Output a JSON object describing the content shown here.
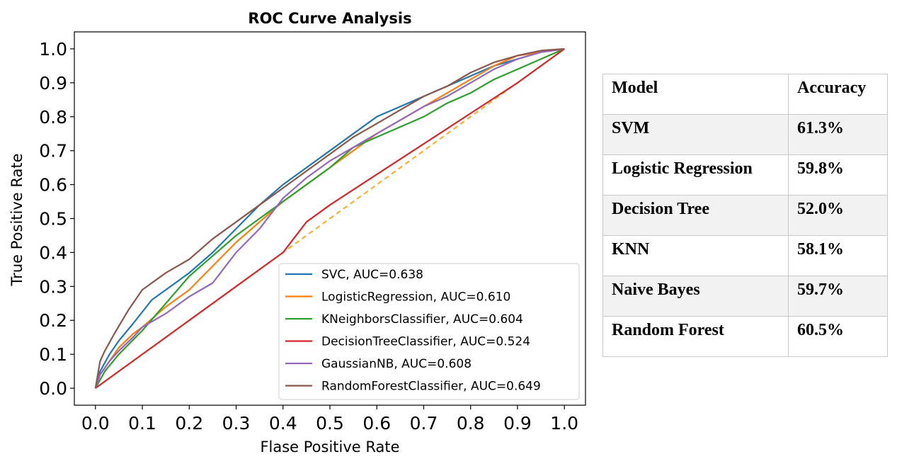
{
  "chart_data": {
    "type": "line",
    "title": "ROC Curve Analysis",
    "xlabel": "Flase Positive Rate",
    "ylabel": "True Positive Rate",
    "xlim": [
      -0.045,
      1.045
    ],
    "ylim": [
      -0.05,
      1.05
    ],
    "xticks": [
      "0.0",
      "0.1",
      "0.2",
      "0.3",
      "0.4",
      "0.5",
      "0.6",
      "0.7",
      "0.8",
      "0.9",
      "1.0"
    ],
    "yticks": [
      "0.0",
      "0.1",
      "0.2",
      "0.3",
      "0.4",
      "0.5",
      "0.6",
      "0.7",
      "0.8",
      "0.9",
      "1.0"
    ],
    "grid": false,
    "legend_position": "lower-right",
    "series": [
      {
        "name": "SVC, AUC=0.638",
        "color": "#1f77b4",
        "x": [
          0,
          0.01,
          0.03,
          0.05,
          0.08,
          0.12,
          0.15,
          0.2,
          0.25,
          0.3,
          0.35,
          0.4,
          0.45,
          0.5,
          0.55,
          0.6,
          0.65,
          0.7,
          0.75,
          0.8,
          0.85,
          0.9,
          0.95,
          1.0
        ],
        "y": [
          0,
          0.05,
          0.1,
          0.14,
          0.19,
          0.26,
          0.29,
          0.34,
          0.4,
          0.47,
          0.54,
          0.6,
          0.65,
          0.7,
          0.75,
          0.8,
          0.83,
          0.86,
          0.89,
          0.92,
          0.95,
          0.97,
          0.99,
          1.0
        ]
      },
      {
        "name": "LogisticRegression, AUC=0.610",
        "color": "#ff7f0e",
        "x": [
          0,
          0.01,
          0.03,
          0.05,
          0.08,
          0.1,
          0.15,
          0.2,
          0.25,
          0.3,
          0.35,
          0.4,
          0.45,
          0.5,
          0.55,
          0.6,
          0.65,
          0.7,
          0.75,
          0.8,
          0.85,
          0.9,
          0.95,
          1.0
        ],
        "y": [
          0,
          0.04,
          0.08,
          0.12,
          0.16,
          0.18,
          0.24,
          0.29,
          0.36,
          0.43,
          0.49,
          0.55,
          0.6,
          0.65,
          0.7,
          0.75,
          0.79,
          0.83,
          0.87,
          0.91,
          0.95,
          0.98,
          0.99,
          1.0
        ]
      },
      {
        "name": "KNeighborsClassifier, AUC=0.604",
        "color": "#2ca02c",
        "x": [
          0,
          0.02,
          0.05,
          0.1,
          0.15,
          0.2,
          0.25,
          0.3,
          0.35,
          0.4,
          0.45,
          0.5,
          0.55,
          0.6,
          0.65,
          0.7,
          0.75,
          0.8,
          0.85,
          0.9,
          0.95,
          1.0
        ],
        "y": [
          0,
          0.05,
          0.1,
          0.17,
          0.25,
          0.33,
          0.39,
          0.45,
          0.5,
          0.55,
          0.6,
          0.65,
          0.71,
          0.74,
          0.77,
          0.8,
          0.84,
          0.87,
          0.91,
          0.94,
          0.97,
          1.0
        ]
      },
      {
        "name": "DecisionTreeClassifier, AUC=0.524",
        "color": "#d62728",
        "x": [
          0,
          0.1,
          0.2,
          0.3,
          0.4,
          0.45,
          0.5,
          0.6,
          0.7,
          0.8,
          0.9,
          1.0
        ],
        "y": [
          0,
          0.1,
          0.2,
          0.3,
          0.4,
          0.49,
          0.54,
          0.63,
          0.72,
          0.81,
          0.9,
          1.0
        ]
      },
      {
        "name": "GaussianNB, AUC=0.608",
        "color": "#9467bd",
        "x": [
          0,
          0.01,
          0.03,
          0.05,
          0.08,
          0.1,
          0.15,
          0.2,
          0.25,
          0.3,
          0.35,
          0.4,
          0.45,
          0.5,
          0.55,
          0.6,
          0.65,
          0.7,
          0.75,
          0.8,
          0.85,
          0.9,
          0.95,
          1.0
        ],
        "y": [
          0,
          0.04,
          0.08,
          0.11,
          0.15,
          0.18,
          0.22,
          0.27,
          0.31,
          0.4,
          0.47,
          0.56,
          0.62,
          0.67,
          0.71,
          0.75,
          0.79,
          0.83,
          0.86,
          0.9,
          0.94,
          0.97,
          0.99,
          1.0
        ]
      },
      {
        "name": "RandomForestClassifier, AUC=0.649",
        "color": "#8c564b",
        "x": [
          0,
          0.01,
          0.02,
          0.04,
          0.07,
          0.1,
          0.15,
          0.2,
          0.25,
          0.3,
          0.35,
          0.4,
          0.45,
          0.5,
          0.55,
          0.6,
          0.65,
          0.7,
          0.75,
          0.8,
          0.85,
          0.9,
          0.95,
          1.0
        ],
        "y": [
          0,
          0.08,
          0.11,
          0.16,
          0.23,
          0.29,
          0.34,
          0.38,
          0.44,
          0.49,
          0.54,
          0.59,
          0.64,
          0.69,
          0.74,
          0.78,
          0.82,
          0.86,
          0.89,
          0.93,
          0.96,
          0.98,
          0.995,
          1.0
        ]
      }
    ],
    "baseline": {
      "color": "#ffa726",
      "style": "dashed",
      "x": [
        0,
        1
      ],
      "y": [
        0,
        1
      ]
    }
  },
  "table": {
    "headers": [
      "Model",
      "Accuracy"
    ],
    "rows": [
      {
        "model": "SVM",
        "accuracy": "61.3%"
      },
      {
        "model": "Logistic Regression",
        "accuracy": "59.8%"
      },
      {
        "model": "Decision Tree",
        "accuracy": "52.0%"
      },
      {
        "model": "KNN",
        "accuracy": "58.1%"
      },
      {
        "model": "Naive Bayes",
        "accuracy": "59.7%"
      },
      {
        "model": "Random Forest",
        "accuracy": "60.5%"
      }
    ],
    "row_shading": "#f2f2f2",
    "border_color": "#c8c8c8"
  }
}
